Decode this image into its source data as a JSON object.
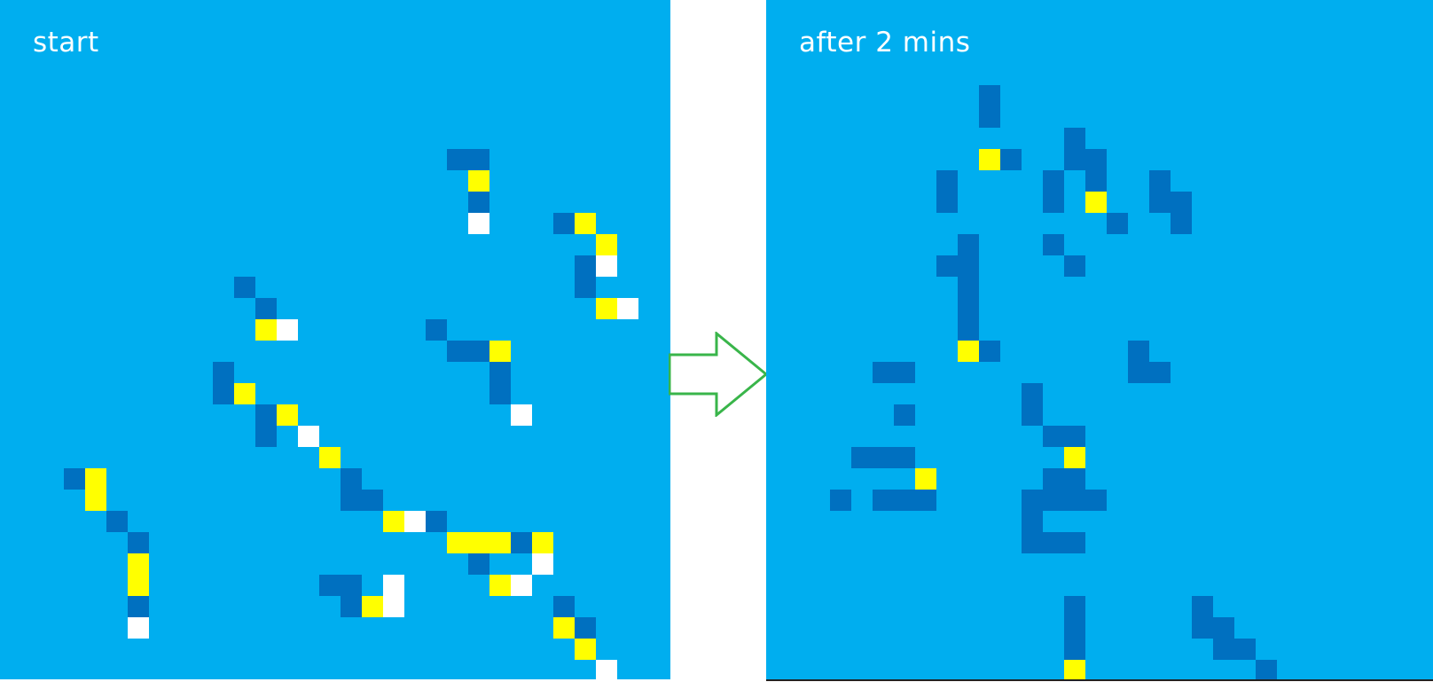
{
  "colors": {
    "background": "#00aeef",
    "dark": "#0070c0",
    "yellow": "#ffff00",
    "white": "#ffffff",
    "arrow": "#39b54a"
  },
  "icons": {
    "arrow": "right-arrow-icon"
  },
  "panels": [
    {
      "label": "start",
      "cells": [
        {
          "c": 21,
          "r": 7,
          "k": "d"
        },
        {
          "c": 22,
          "r": 7,
          "k": "d"
        },
        {
          "c": 22,
          "r": 8,
          "k": "y"
        },
        {
          "c": 22,
          "r": 9,
          "k": "d"
        },
        {
          "c": 22,
          "r": 10,
          "k": "w"
        },
        {
          "c": 26,
          "r": 10,
          "k": "d"
        },
        {
          "c": 27,
          "r": 10,
          "k": "y"
        },
        {
          "c": 28,
          "r": 11,
          "k": "y"
        },
        {
          "c": 27,
          "r": 12,
          "k": "d"
        },
        {
          "c": 28,
          "r": 12,
          "k": "w"
        },
        {
          "c": 27,
          "r": 13,
          "k": "d"
        },
        {
          "c": 28,
          "r": 14,
          "k": "y"
        },
        {
          "c": 29,
          "r": 14,
          "k": "w"
        },
        {
          "c": 11,
          "r": 13,
          "k": "d"
        },
        {
          "c": 12,
          "r": 14,
          "k": "d"
        },
        {
          "c": 12,
          "r": 15,
          "k": "y"
        },
        {
          "c": 13,
          "r": 15,
          "k": "w"
        },
        {
          "c": 20,
          "r": 15,
          "k": "d"
        },
        {
          "c": 21,
          "r": 16,
          "k": "d"
        },
        {
          "c": 22,
          "r": 16,
          "k": "d"
        },
        {
          "c": 23,
          "r": 16,
          "k": "y"
        },
        {
          "c": 23,
          "r": 17,
          "k": "d"
        },
        {
          "c": 23,
          "r": 18,
          "k": "d"
        },
        {
          "c": 24,
          "r": 19,
          "k": "w"
        },
        {
          "c": 10,
          "r": 17,
          "k": "d"
        },
        {
          "c": 10,
          "r": 18,
          "k": "d"
        },
        {
          "c": 11,
          "r": 18,
          "k": "y"
        },
        {
          "c": 12,
          "r": 19,
          "k": "d"
        },
        {
          "c": 13,
          "r": 19,
          "k": "y"
        },
        {
          "c": 12,
          "r": 20,
          "k": "d"
        },
        {
          "c": 14,
          "r": 20,
          "k": "w"
        },
        {
          "c": 15,
          "r": 21,
          "k": "y"
        },
        {
          "c": 16,
          "r": 22,
          "k": "d"
        },
        {
          "c": 16,
          "r": 23,
          "k": "d"
        },
        {
          "c": 17,
          "r": 23,
          "k": "d"
        },
        {
          "c": 18,
          "r": 24,
          "k": "y"
        },
        {
          "c": 19,
          "r": 24,
          "k": "w"
        },
        {
          "c": 20,
          "r": 24,
          "k": "d"
        },
        {
          "c": 21,
          "r": 25,
          "k": "y"
        },
        {
          "c": 22,
          "r": 25,
          "k": "y"
        },
        {
          "c": 23,
          "r": 25,
          "k": "y"
        },
        {
          "c": 24,
          "r": 25,
          "k": "d"
        },
        {
          "c": 25,
          "r": 25,
          "k": "y"
        },
        {
          "c": 22,
          "r": 26,
          "k": "d"
        },
        {
          "c": 25,
          "r": 26,
          "k": "w"
        },
        {
          "c": 23,
          "r": 27,
          "k": "y"
        },
        {
          "c": 24,
          "r": 27,
          "k": "w"
        },
        {
          "c": 15,
          "r": 27,
          "k": "d"
        },
        {
          "c": 16,
          "r": 27,
          "k": "d"
        },
        {
          "c": 18,
          "r": 27,
          "k": "w"
        },
        {
          "c": 16,
          "r": 28,
          "k": "d"
        },
        {
          "c": 17,
          "r": 28,
          "k": "y"
        },
        {
          "c": 18,
          "r": 28,
          "k": "w"
        },
        {
          "c": 26,
          "r": 28,
          "k": "d"
        },
        {
          "c": 26,
          "r": 29,
          "k": "y"
        },
        {
          "c": 27,
          "r": 29,
          "k": "d"
        },
        {
          "c": 27,
          "r": 30,
          "k": "y"
        },
        {
          "c": 28,
          "r": 31,
          "k": "w"
        },
        {
          "c": 3,
          "r": 22,
          "k": "d"
        },
        {
          "c": 4,
          "r": 22,
          "k": "y"
        },
        {
          "c": 4,
          "r": 23,
          "k": "y"
        },
        {
          "c": 5,
          "r": 24,
          "k": "d"
        },
        {
          "c": 6,
          "r": 25,
          "k": "d"
        },
        {
          "c": 6,
          "r": 26,
          "k": "y"
        },
        {
          "c": 6,
          "r": 27,
          "k": "y"
        },
        {
          "c": 6,
          "r": 28,
          "k": "d"
        },
        {
          "c": 6,
          "r": 29,
          "k": "w"
        }
      ]
    },
    {
      "label": "after 2 mins",
      "cells": [
        {
          "c": 10,
          "r": 4,
          "k": "d"
        },
        {
          "c": 10,
          "r": 5,
          "k": "d"
        },
        {
          "c": 14,
          "r": 6,
          "k": "d"
        },
        {
          "c": 10,
          "r": 7,
          "k": "y"
        },
        {
          "c": 11,
          "r": 7,
          "k": "d"
        },
        {
          "c": 14,
          "r": 7,
          "k": "d"
        },
        {
          "c": 15,
          "r": 7,
          "k": "d"
        },
        {
          "c": 8,
          "r": 8,
          "k": "d"
        },
        {
          "c": 13,
          "r": 8,
          "k": "d"
        },
        {
          "c": 15,
          "r": 8,
          "k": "d"
        },
        {
          "c": 18,
          "r": 8,
          "k": "d"
        },
        {
          "c": 8,
          "r": 9,
          "k": "d"
        },
        {
          "c": 13,
          "r": 9,
          "k": "d"
        },
        {
          "c": 15,
          "r": 9,
          "k": "y"
        },
        {
          "c": 18,
          "r": 9,
          "k": "d"
        },
        {
          "c": 19,
          "r": 9,
          "k": "d"
        },
        {
          "c": 16,
          "r": 10,
          "k": "d"
        },
        {
          "c": 19,
          "r": 10,
          "k": "d"
        },
        {
          "c": 9,
          "r": 11,
          "k": "d"
        },
        {
          "c": 13,
          "r": 11,
          "k": "d"
        },
        {
          "c": 8,
          "r": 12,
          "k": "d"
        },
        {
          "c": 9,
          "r": 12,
          "k": "d"
        },
        {
          "c": 14,
          "r": 12,
          "k": "d"
        },
        {
          "c": 9,
          "r": 13,
          "k": "d"
        },
        {
          "c": 9,
          "r": 14,
          "k": "d"
        },
        {
          "c": 9,
          "r": 15,
          "k": "d"
        },
        {
          "c": 9,
          "r": 16,
          "k": "y"
        },
        {
          "c": 10,
          "r": 16,
          "k": "d"
        },
        {
          "c": 17,
          "r": 16,
          "k": "d"
        },
        {
          "c": 5,
          "r": 17,
          "k": "d"
        },
        {
          "c": 6,
          "r": 17,
          "k": "d"
        },
        {
          "c": 17,
          "r": 17,
          "k": "d"
        },
        {
          "c": 18,
          "r": 17,
          "k": "d"
        },
        {
          "c": 12,
          "r": 18,
          "k": "d"
        },
        {
          "c": 6,
          "r": 19,
          "k": "d"
        },
        {
          "c": 12,
          "r": 19,
          "k": "d"
        },
        {
          "c": 13,
          "r": 20,
          "k": "d"
        },
        {
          "c": 14,
          "r": 20,
          "k": "d"
        },
        {
          "c": 4,
          "r": 21,
          "k": "d"
        },
        {
          "c": 5,
          "r": 21,
          "k": "d"
        },
        {
          "c": 6,
          "r": 21,
          "k": "d"
        },
        {
          "c": 14,
          "r": 21,
          "k": "y"
        },
        {
          "c": 7,
          "r": 22,
          "k": "y"
        },
        {
          "c": 13,
          "r": 22,
          "k": "d"
        },
        {
          "c": 14,
          "r": 22,
          "k": "d"
        },
        {
          "c": 3,
          "r": 23,
          "k": "d"
        },
        {
          "c": 5,
          "r": 23,
          "k": "d"
        },
        {
          "c": 6,
          "r": 23,
          "k": "d"
        },
        {
          "c": 7,
          "r": 23,
          "k": "d"
        },
        {
          "c": 12,
          "r": 23,
          "k": "d"
        },
        {
          "c": 13,
          "r": 23,
          "k": "d"
        },
        {
          "c": 14,
          "r": 23,
          "k": "d"
        },
        {
          "c": 15,
          "r": 23,
          "k": "d"
        },
        {
          "c": 12,
          "r": 24,
          "k": "d"
        },
        {
          "c": 12,
          "r": 25,
          "k": "d"
        },
        {
          "c": 13,
          "r": 25,
          "k": "d"
        },
        {
          "c": 14,
          "r": 25,
          "k": "d"
        },
        {
          "c": 14,
          "r": 28,
          "k": "d"
        },
        {
          "c": 20,
          "r": 28,
          "k": "d"
        },
        {
          "c": 14,
          "r": 29,
          "k": "d"
        },
        {
          "c": 20,
          "r": 29,
          "k": "d"
        },
        {
          "c": 21,
          "r": 29,
          "k": "d"
        },
        {
          "c": 14,
          "r": 30,
          "k": "d"
        },
        {
          "c": 21,
          "r": 30,
          "k": "d"
        },
        {
          "c": 22,
          "r": 30,
          "k": "d"
        },
        {
          "c": 14,
          "r": 31,
          "k": "y"
        },
        {
          "c": 23,
          "r": 31,
          "k": "d"
        }
      ]
    }
  ]
}
